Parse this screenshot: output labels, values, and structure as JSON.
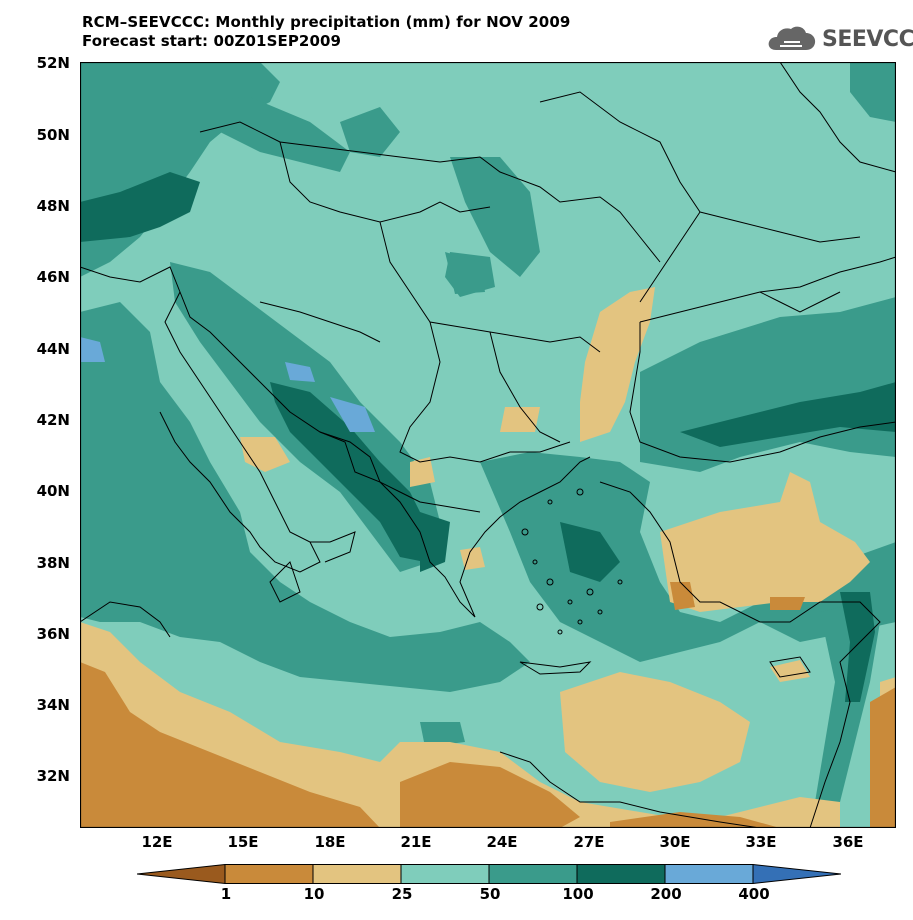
{
  "title": {
    "line1": "RCM–SEEVCCC: Monthly precipitation (mm) for NOV 2009",
    "line2": "Forecast start: 00Z01SEP2009"
  },
  "logo": {
    "text": "SEEVCCC",
    "icon": "cloud-logo-icon"
  },
  "axes": {
    "lat_labels": [
      "52N",
      "50N",
      "48N",
      "46N",
      "44N",
      "42N",
      "40N",
      "38N",
      "36N",
      "34N",
      "32N"
    ],
    "lon_labels": [
      "12E",
      "15E",
      "18E",
      "21E",
      "24E",
      "27E",
      "30E",
      "33E",
      "36E"
    ]
  },
  "colorbar": {
    "labels": [
      "1",
      "10",
      "25",
      "50",
      "100",
      "200",
      "400"
    ],
    "colors": [
      "#9a5a1e",
      "#c98a3a",
      "#e3c480",
      "#7fcdbb",
      "#3a9b8b",
      "#0f6b5c",
      "#69a9d8",
      "#3470b6"
    ]
  }
}
